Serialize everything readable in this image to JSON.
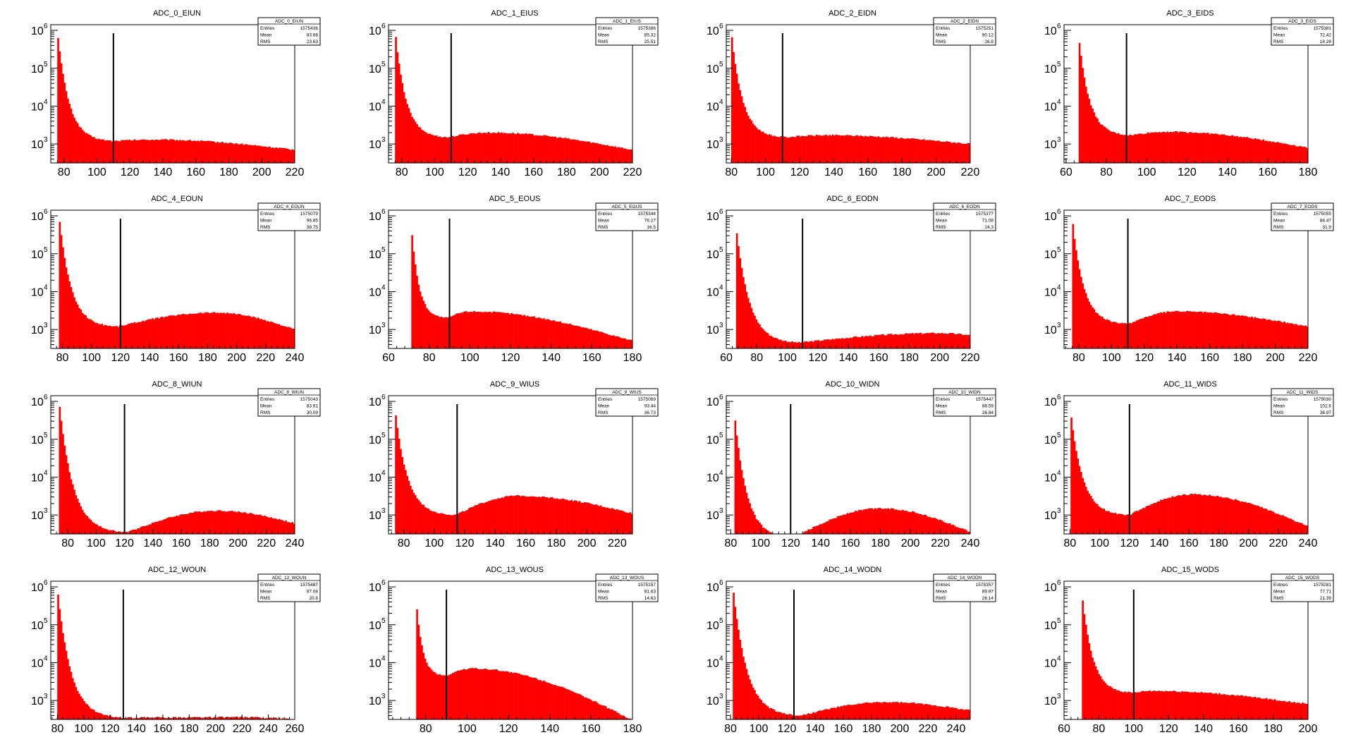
{
  "chart_data": [
    {
      "type": "bar",
      "title": "ADC_0_EIUN",
      "log_y": true,
      "xlim": [
        72,
        220
      ],
      "xticks": [
        80,
        100,
        120,
        140,
        160,
        180,
        200,
        220
      ],
      "ylim_decades": [
        2.5,
        6.15
      ],
      "yticks": [
        {
          "base": "10",
          "exp": "3"
        },
        {
          "base": "10",
          "exp": "4"
        },
        {
          "base": "10",
          "exp": "5"
        },
        {
          "base": "10",
          "exp": "6"
        }
      ],
      "peak_x": 76,
      "peak_y": 1000000,
      "valley_x": 110,
      "valley_y": 1200,
      "hump_x": 135,
      "hump_y": 1300,
      "end_y": 700,
      "cut_x": 110,
      "bar_color": "#ff0000",
      "stats": {
        "name": "ADC_0_EIUN",
        "rows": [
          {
            "label": "Entries",
            "value": "1575436"
          },
          {
            "label": "Mean",
            "value": "83.88"
          },
          {
            "label": "RMS",
            "value": "23.63"
          }
        ]
      }
    },
    {
      "type": "bar",
      "title": "ADC_1_EIUS",
      "log_y": true,
      "xlim": [
        72,
        220
      ],
      "xticks": [
        80,
        100,
        120,
        140,
        160,
        180,
        200,
        220
      ],
      "ylim_decades": [
        2.5,
        6.15
      ],
      "yticks": [
        {
          "base": "10",
          "exp": "3"
        },
        {
          "base": "10",
          "exp": "4"
        },
        {
          "base": "10",
          "exp": "5"
        },
        {
          "base": "10",
          "exp": "6"
        }
      ],
      "peak_x": 76,
      "peak_y": 1000000,
      "valley_x": 108,
      "valley_y": 1500,
      "hump_x": 132,
      "hump_y": 2000,
      "end_y": 700,
      "cut_x": 110,
      "bar_color": "#ff0000",
      "stats": {
        "name": "ADC_1_EIUS",
        "rows": [
          {
            "label": "Entries",
            "value": "1575386"
          },
          {
            "label": "Mean",
            "value": "85.32"
          },
          {
            "label": "RMS",
            "value": "25.51"
          }
        ]
      }
    },
    {
      "type": "bar",
      "title": "ADC_2_EIDN",
      "log_y": true,
      "xlim": [
        77,
        220
      ],
      "xticks": [
        80,
        100,
        120,
        140,
        160,
        180,
        200,
        220
      ],
      "ylim_decades": [
        2.5,
        6.15
      ],
      "yticks": [
        {
          "base": "10",
          "exp": "3"
        },
        {
          "base": "10",
          "exp": "4"
        },
        {
          "base": "10",
          "exp": "5"
        },
        {
          "base": "10",
          "exp": "6"
        }
      ],
      "peak_x": 80,
      "peak_y": 900000,
      "valley_x": 112,
      "valley_y": 1500,
      "hump_x": 135,
      "hump_y": 1700,
      "end_y": 1000,
      "cut_x": 110,
      "bar_color": "#ff0000",
      "stats": {
        "name": "ADC_2_EIDN",
        "rows": [
          {
            "label": "Entries",
            "value": "1575251"
          },
          {
            "label": "Mean",
            "value": "90.12"
          },
          {
            "label": "RMS",
            "value": "26.8"
          }
        ]
      }
    },
    {
      "type": "bar",
      "title": "ADC_3_EIDS",
      "log_y": true,
      "xlim": [
        59,
        180
      ],
      "xticks": [
        60,
        80,
        100,
        120,
        140,
        160,
        180
      ],
      "ylim_decades": [
        2.5,
        6.15
      ],
      "yticks": [
        {
          "base": "10",
          "exp": "3"
        },
        {
          "base": "10",
          "exp": "4"
        },
        {
          "base": "10",
          "exp": "5"
        },
        {
          "base": "10",
          "exp": "6"
        }
      ],
      "peak_x": 66,
      "peak_y": 1000000,
      "valley_x": 92,
      "valley_y": 1700,
      "hump_x": 110,
      "hump_y": 2100,
      "end_y": 800,
      "cut_x": 90,
      "bar_color": "#ff0000",
      "stats": {
        "name": "ADC_3_EIDS",
        "rows": [
          {
            "label": "Entries",
            "value": "1575381"
          },
          {
            "label": "Mean",
            "value": "72.42"
          },
          {
            "label": "RMS",
            "value": "18.28"
          }
        ]
      }
    },
    {
      "type": "bar",
      "title": "ADC_4_EOUN",
      "log_y": true,
      "xlim": [
        72,
        240
      ],
      "xticks": [
        80,
        100,
        120,
        140,
        160,
        180,
        200,
        220,
        240
      ],
      "ylim_decades": [
        2.5,
        6.15
      ],
      "yticks": [
        {
          "base": "10",
          "exp": "3"
        },
        {
          "base": "10",
          "exp": "4"
        },
        {
          "base": "10",
          "exp": "5"
        },
        {
          "base": "10",
          "exp": "6"
        }
      ],
      "peak_x": 78,
      "peak_y": 800000,
      "valley_x": 118,
      "valley_y": 1200,
      "hump_x": 185,
      "hump_y": 2800,
      "end_y": 1000,
      "cut_x": 120,
      "bar_color": "#ff0000",
      "stats": {
        "name": "ADC_4_EOUN",
        "rows": [
          {
            "label": "Entries",
            "value": "1575079"
          },
          {
            "label": "Mean",
            "value": "96.85"
          },
          {
            "label": "RMS",
            "value": "38.75"
          }
        ]
      }
    },
    {
      "type": "bar",
      "title": "ADC_5_EOUS",
      "log_y": true,
      "xlim": [
        60,
        180
      ],
      "xticks": [
        60,
        80,
        100,
        120,
        140,
        160,
        180
      ],
      "ylim_decades": [
        2.5,
        6.15
      ],
      "yticks": [
        {
          "base": "10",
          "exp": "3"
        },
        {
          "base": "10",
          "exp": "4"
        },
        {
          "base": "10",
          "exp": "5"
        },
        {
          "base": "10",
          "exp": "6"
        }
      ],
      "peak_x": 71,
      "peak_y": 800000,
      "valley_x": 89,
      "valley_y": 2000,
      "hump_x": 100,
      "hump_y": 3000,
      "end_y": 500,
      "cut_x": 90,
      "bar_color": "#ff0000",
      "stats": {
        "name": "ADC_5_EOUS",
        "rows": [
          {
            "label": "Entries",
            "value": "1575344"
          },
          {
            "label": "Mean",
            "value": "76.27"
          },
          {
            "label": "RMS",
            "value": "16.5"
          }
        ]
      }
    },
    {
      "type": "bar",
      "title": "ADC_6_EODN",
      "log_y": true,
      "xlim": [
        60,
        220
      ],
      "xticks": [
        60,
        80,
        100,
        120,
        140,
        160,
        180,
        200,
        220
      ],
      "ylim_decades": [
        2.5,
        6.15
      ],
      "yticks": [
        {
          "base": "10",
          "exp": "3"
        },
        {
          "base": "10",
          "exp": "4"
        },
        {
          "base": "10",
          "exp": "5"
        },
        {
          "base": "10",
          "exp": "6"
        }
      ],
      "peak_x": 66,
      "peak_y": 800000,
      "valley_x": 108,
      "valley_y": 450,
      "hump_x": 200,
      "hump_y": 800,
      "end_y": 700,
      "cut_x": 110,
      "bar_color": "#ff0000",
      "stats": {
        "name": "ADC_6_EODN",
        "rows": [
          {
            "label": "Entries",
            "value": "1575377"
          },
          {
            "label": "Mean",
            "value": "71.08"
          },
          {
            "label": "RMS",
            "value": "24.3"
          }
        ]
      }
    },
    {
      "type": "bar",
      "title": "ADC_7_EODS",
      "log_y": true,
      "xlim": [
        71,
        220
      ],
      "xticks": [
        80,
        100,
        120,
        140,
        160,
        180,
        200,
        220
      ],
      "ylim_decades": [
        2.5,
        6.15
      ],
      "yticks": [
        {
          "base": "10",
          "exp": "3"
        },
        {
          "base": "10",
          "exp": "4"
        },
        {
          "base": "10",
          "exp": "5"
        },
        {
          "base": "10",
          "exp": "6"
        }
      ],
      "peak_x": 76,
      "peak_y": 900000,
      "valley_x": 110,
      "valley_y": 1400,
      "hump_x": 140,
      "hump_y": 3000,
      "end_y": 1200,
      "cut_x": 110,
      "bar_color": "#ff0000",
      "stats": {
        "name": "ADC_7_EODS",
        "rows": [
          {
            "label": "Entries",
            "value": "1575055"
          },
          {
            "label": "Mean",
            "value": "88.47"
          },
          {
            "label": "RMS",
            "value": "31.9"
          }
        ]
      }
    },
    {
      "type": "bar",
      "title": "ADC_8_WIUN",
      "log_y": true,
      "xlim": [
        68,
        240
      ],
      "xticks": [
        80,
        100,
        120,
        140,
        160,
        180,
        200,
        220,
        240
      ],
      "ylim_decades": [
        2.5,
        6.15
      ],
      "yticks": [
        {
          "base": "10",
          "exp": "3"
        },
        {
          "base": "10",
          "exp": "4"
        },
        {
          "base": "10",
          "exp": "5"
        },
        {
          "base": "10",
          "exp": "6"
        }
      ],
      "peak_x": 74,
      "peak_y": 900000,
      "valley_x": 122,
      "valley_y": 350,
      "hump_x": 185,
      "hump_y": 1300,
      "end_y": 600,
      "cut_x": 120,
      "bar_color": "#ff0000",
      "stats": {
        "name": "ADC_8_WIUN",
        "rows": [
          {
            "label": "Entries",
            "value": "1575043"
          },
          {
            "label": "Mean",
            "value": "83.91"
          },
          {
            "label": "RMS",
            "value": "30.09"
          }
        ]
      }
    },
    {
      "type": "bar",
      "title": "ADC_9_WIUS",
      "log_y": true,
      "xlim": [
        70,
        230
      ],
      "xticks": [
        80,
        100,
        120,
        140,
        160,
        180,
        200,
        220
      ],
      "ylim_decades": [
        2.5,
        6.15
      ],
      "yticks": [
        {
          "base": "10",
          "exp": "3"
        },
        {
          "base": "10",
          "exp": "4"
        },
        {
          "base": "10",
          "exp": "5"
        },
        {
          "base": "10",
          "exp": "6"
        }
      ],
      "peak_x": 74,
      "peak_y": 800000,
      "valley_x": 114,
      "valley_y": 1000,
      "hump_x": 155,
      "hump_y": 3200,
      "end_y": 1100,
      "cut_x": 115,
      "bar_color": "#ff0000",
      "stats": {
        "name": "ADC_9_WIUS",
        "rows": [
          {
            "label": "Entries",
            "value": "1575069"
          },
          {
            "label": "Mean",
            "value": "93.44"
          },
          {
            "label": "RMS",
            "value": "36.73"
          }
        ]
      }
    },
    {
      "type": "bar",
      "title": "ADC_10_WIDN",
      "log_y": true,
      "xlim": [
        77,
        240
      ],
      "xticks": [
        80,
        100,
        120,
        140,
        160,
        180,
        200,
        220,
        240
      ],
      "ylim_decades": [
        2.5,
        6.15
      ],
      "yticks": [
        {
          "base": "10",
          "exp": "3"
        },
        {
          "base": "10",
          "exp": "4"
        },
        {
          "base": "10",
          "exp": "5"
        },
        {
          "base": "10",
          "exp": "6"
        }
      ],
      "peak_x": 82,
      "peak_y": 800000,
      "valley_x": 122,
      "valley_y": 250,
      "hump_x": 180,
      "hump_y": 1500,
      "end_y": 350,
      "cut_x": 120,
      "bar_color": "#ff0000",
      "stats": {
        "name": "ADC_10_WIDN",
        "rows": [
          {
            "label": "Entries",
            "value": "1575447"
          },
          {
            "label": "Mean",
            "value": "88.59"
          },
          {
            "label": "RMS",
            "value": "26.84"
          }
        ]
      }
    },
    {
      "type": "bar",
      "title": "ADC_11_WIDS",
      "log_y": true,
      "xlim": [
        76,
        240
      ],
      "xticks": [
        80,
        100,
        120,
        140,
        160,
        180,
        200,
        220,
        240
      ],
      "ylim_decades": [
        2.5,
        6.15
      ],
      "yticks": [
        {
          "base": "10",
          "exp": "3"
        },
        {
          "base": "10",
          "exp": "4"
        },
        {
          "base": "10",
          "exp": "5"
        },
        {
          "base": "10",
          "exp": "6"
        }
      ],
      "peak_x": 80,
      "peak_y": 800000,
      "valley_x": 120,
      "valley_y": 1000,
      "hump_x": 162,
      "hump_y": 3500,
      "end_y": 500,
      "cut_x": 120,
      "bar_color": "#ff0000",
      "stats": {
        "name": "ADC_11_WIDS",
        "rows": [
          {
            "label": "Entries",
            "value": "1575030"
          },
          {
            "label": "Mean",
            "value": "102.6"
          },
          {
            "label": "RMS",
            "value": "36.97"
          }
        ]
      }
    },
    {
      "type": "bar",
      "title": "ADC_12_WOUN",
      "log_y": true,
      "xlim": [
        75,
        260
      ],
      "xticks": [
        80,
        100,
        120,
        140,
        160,
        180,
        200,
        220,
        240,
        260
      ],
      "ylim_decades": [
        2.5,
        6.15
      ],
      "yticks": [
        {
          "base": "10",
          "exp": "3"
        },
        {
          "base": "10",
          "exp": "4"
        },
        {
          "base": "10",
          "exp": "5"
        },
        {
          "base": "10",
          "exp": "6"
        }
      ],
      "peak_x": 80,
      "peak_y": 1000000,
      "valley_x": 130,
      "valley_y": 350,
      "hump_x": 220,
      "hump_y": 360,
      "end_y": 320,
      "cut_x": 130,
      "bar_color": "#ff0000",
      "stats": {
        "name": "ADC_12_WOUN",
        "rows": [
          {
            "label": "Entries",
            "value": "1575487"
          },
          {
            "label": "Mean",
            "value": "87.08"
          },
          {
            "label": "RMS",
            "value": "20.8"
          }
        ]
      }
    },
    {
      "type": "bar",
      "title": "ADC_13_WOUS",
      "log_y": true,
      "xlim": [
        62,
        180
      ],
      "xticks": [
        80,
        100,
        120,
        140,
        160,
        180
      ],
      "ylim_decades": [
        2.5,
        6.15
      ],
      "yticks": [
        {
          "base": "10",
          "exp": "3"
        },
        {
          "base": "10",
          "exp": "4"
        },
        {
          "base": "10",
          "exp": "5"
        },
        {
          "base": "10",
          "exp": "6"
        }
      ],
      "peak_x": 75,
      "peak_y": 800000,
      "valley_x": 90,
      "valley_y": 4500,
      "hump_x": 102,
      "hump_y": 7000,
      "end_y": 300,
      "cut_x": 90,
      "bar_color": "#ff0000",
      "stats": {
        "name": "ADC_13_WOUS",
        "rows": [
          {
            "label": "Entries",
            "value": "1575157"
          },
          {
            "label": "Mean",
            "value": "81.63"
          },
          {
            "label": "RMS",
            "value": "14.63"
          }
        ]
      }
    },
    {
      "type": "bar",
      "title": "ADC_14_WODN",
      "log_y": true,
      "xlim": [
        77,
        250
      ],
      "xticks": [
        80,
        100,
        120,
        140,
        160,
        180,
        200,
        220,
        240
      ],
      "ylim_decades": [
        2.5,
        6.15
      ],
      "yticks": [
        {
          "base": "10",
          "exp": "3"
        },
        {
          "base": "10",
          "exp": "4"
        },
        {
          "base": "10",
          "exp": "5"
        },
        {
          "base": "10",
          "exp": "6"
        }
      ],
      "peak_x": 82,
      "peak_y": 800000,
      "valley_x": 130,
      "valley_y": 400,
      "hump_x": 190,
      "hump_y": 900,
      "end_y": 550,
      "cut_x": 125,
      "bar_color": "#ff0000",
      "stats": {
        "name": "ADC_14_WODN",
        "rows": [
          {
            "label": "Entries",
            "value": "1575357"
          },
          {
            "label": "Mean",
            "value": "89.97"
          },
          {
            "label": "RMS",
            "value": "26.14"
          }
        ]
      }
    },
    {
      "type": "bar",
      "title": "ADC_15_WODS",
      "log_y": true,
      "xlim": [
        60,
        200
      ],
      "xticks": [
        60,
        80,
        100,
        120,
        140,
        160,
        180,
        200
      ],
      "ylim_decades": [
        2.5,
        6.15
      ],
      "yticks": [
        {
          "base": "10",
          "exp": "3"
        },
        {
          "base": "10",
          "exp": "4"
        },
        {
          "base": "10",
          "exp": "5"
        },
        {
          "base": "10",
          "exp": "6"
        }
      ],
      "peak_x": 70,
      "peak_y": 900000,
      "valley_x": 100,
      "valley_y": 1600,
      "hump_x": 110,
      "hump_y": 1800,
      "end_y": 800,
      "cut_x": 100,
      "bar_color": "#ff0000",
      "stats": {
        "name": "ADC_15_WODS",
        "rows": [
          {
            "label": "Entries",
            "value": "1575281"
          },
          {
            "label": "Mean",
            "value": "77.71"
          },
          {
            "label": "RMS",
            "value": "21.39"
          }
        ]
      }
    }
  ]
}
